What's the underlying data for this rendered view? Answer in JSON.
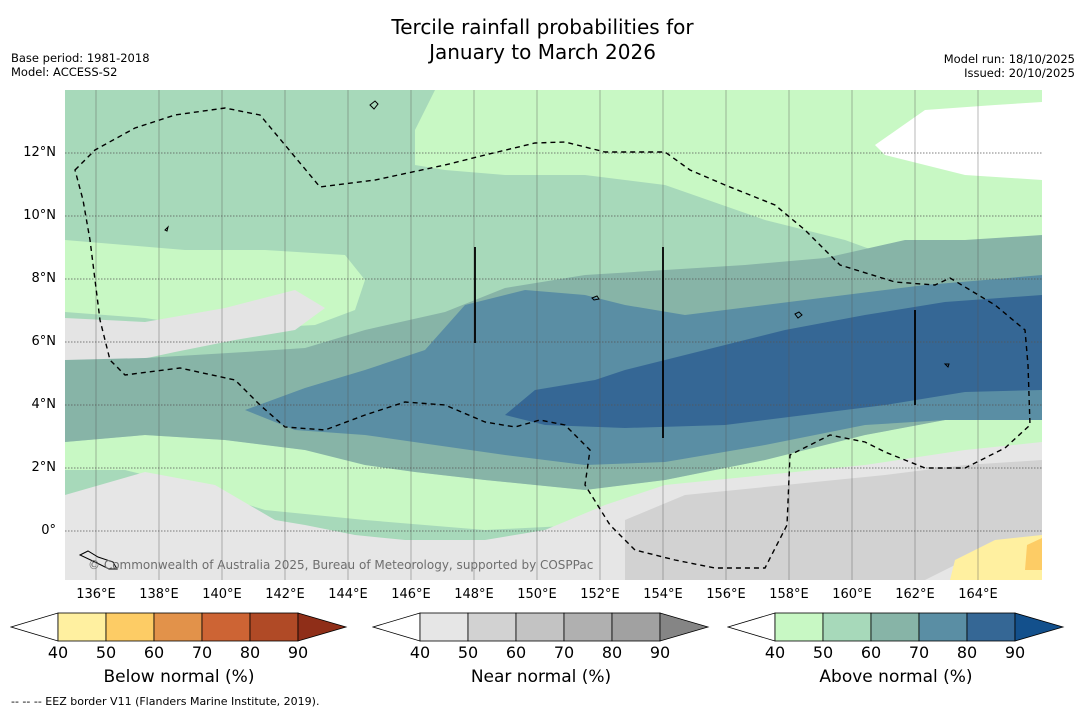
{
  "title_line1": "Tercile rainfall probabilities for",
  "title_line2": "January to March 2026",
  "base_period": "Base period: 1981-2018",
  "model": "Model: ACCESS-S2",
  "model_run": "Model run: 18/10/2025",
  "issued": "Issued: 20/10/2025",
  "copyright": "© Commonwealth of Australia 2025, Bureau of Meteorology, supported by COSPPac",
  "footnote": "--  --  -- EEZ border V11 (Flanders Marine Institute, 2019).",
  "lat_labels": [
    "12°N",
    "10°N",
    "8°N",
    "6°N",
    "4°N",
    "2°N",
    "0°"
  ],
  "lon_labels": [
    "136°E",
    "138°E",
    "140°E",
    "142°E",
    "144°E",
    "146°E",
    "148°E",
    "150°E",
    "152°E",
    "154°E",
    "156°E",
    "158°E",
    "160°E",
    "162°E",
    "164°E"
  ],
  "colorbars": [
    {
      "label": "Below normal (%)",
      "ticks": [
        "40",
        "50",
        "60",
        "70",
        "80",
        "90"
      ],
      "colors": [
        "#ffffff",
        "#fff0a0",
        "#fdcc65",
        "#e2924a",
        "#cd6434",
        "#b04a26",
        "#8f2e18"
      ]
    },
    {
      "label": "Near normal (%)",
      "ticks": [
        "40",
        "50",
        "60",
        "70",
        "80",
        "90"
      ],
      "colors": [
        "#ffffff",
        "#e6e6e6",
        "#d2d2d2",
        "#c3c3c3",
        "#b0b0b0",
        "#a1a1a1",
        "#858585"
      ]
    },
    {
      "label": "Above normal (%)",
      "ticks": [
        "40",
        "50",
        "60",
        "70",
        "80",
        "90"
      ],
      "colors": [
        "#ffffff",
        "#c8f8c4",
        "#a7d9ba",
        "#87b4a7",
        "#5a8ea4",
        "#356795",
        "#13508c"
      ]
    }
  ]
}
